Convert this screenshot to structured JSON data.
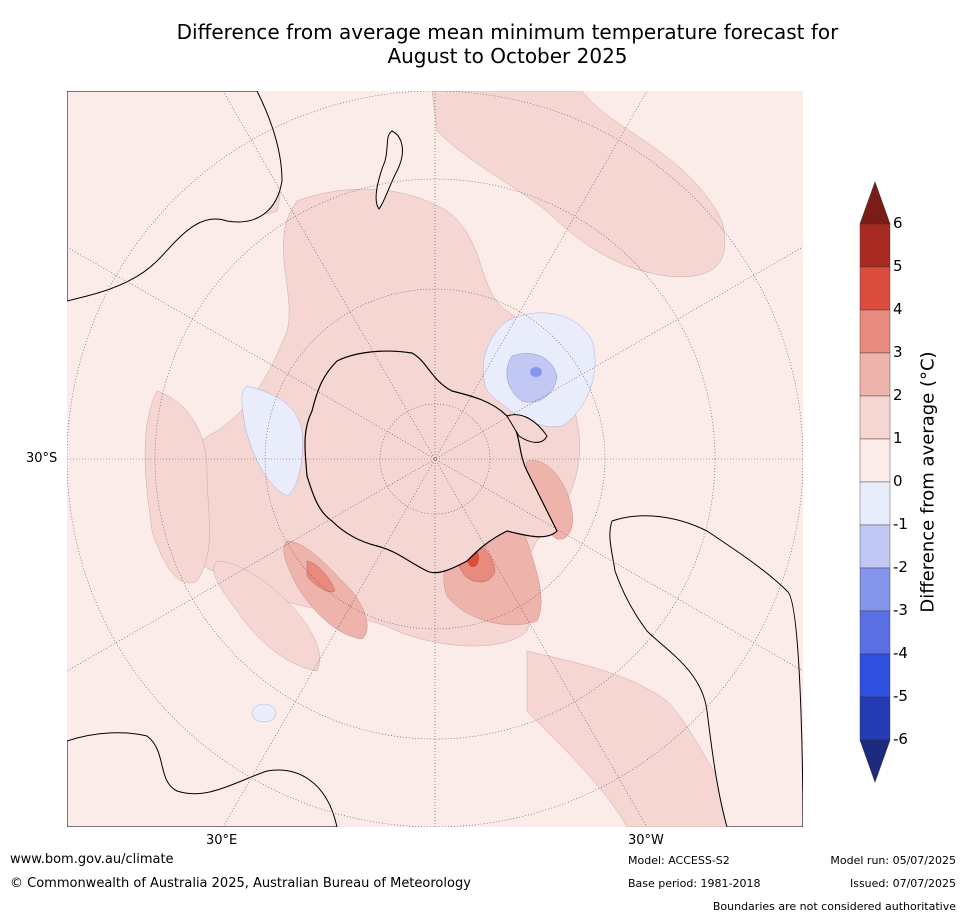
{
  "title_line1": "Difference from average mean minimum temperature forecast for",
  "title_line2": "August to October 2025",
  "axis_labels": {
    "lat": "30°S",
    "lon_left": "30°E",
    "lon_right": "30°W"
  },
  "colorbar": {
    "title": "Difference from average (°C)",
    "ticks": [
      "6",
      "5",
      "4",
      "3",
      "2",
      "1",
      "0",
      "-1",
      "-2",
      "-3",
      "-4",
      "-5",
      "-6"
    ],
    "colors_top_to_bottom": [
      "#a82a22",
      "#d94c3e",
      "#e98a7e",
      "#eeb3ab",
      "#f5d6d2",
      "#fbece9",
      "#e9edfb",
      "#c1c8f3",
      "#8595eb",
      "#5a6fe3",
      "#2f4fde",
      "#243bb3"
    ],
    "extend_high_color": "#7b1c17",
    "extend_low_color": "#1c2a7f"
  },
  "footer": {
    "website": "www.bom.gov.au/climate",
    "copyright": "© Commonwealth of Australia 2025, Australian Bureau of Meteorology",
    "model": "Model: ACCESS-S2",
    "base_period": "Base period: 1981-2018",
    "model_run": "Model run: 05/07/2025",
    "issued": "Issued: 07/07/2025",
    "disclaimer": "Boundaries are not considered authoritative"
  }
}
